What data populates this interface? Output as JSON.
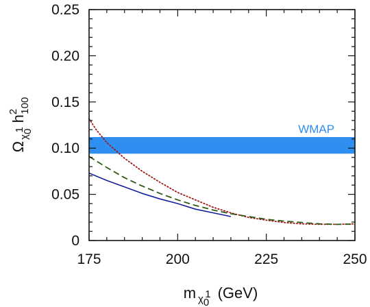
{
  "chart_data": {
    "type": "line",
    "title": "",
    "xlabel": {
      "main": "m",
      "sub_char": "χ",
      "sub_sub": "0",
      "sub_sup": "1",
      "unit": "(GeV)"
    },
    "ylabel": {
      "main": "Ω",
      "sub_char": "χ",
      "sub_sub": "0",
      "sub_sup": "1",
      "h": "h",
      "h_sup": "2",
      "h_sub": "100"
    },
    "xlim": [
      175,
      250
    ],
    "ylim": [
      0,
      0.25
    ],
    "x_ticks": [
      175,
      200,
      225,
      250
    ],
    "x_tick_labels": [
      "175",
      "200",
      "225",
      "250"
    ],
    "y_ticks": [
      0,
      0.05,
      0.1,
      0.15,
      0.2,
      0.25
    ],
    "y_tick_labels": [
      "0",
      "0.05",
      "0.10",
      "0.15",
      "0.20",
      "0.25"
    ],
    "grid": false,
    "legend": "none",
    "band": {
      "label": "WMAP",
      "ymin": 0.094,
      "ymax": 0.112,
      "color": "#2f8ff0"
    },
    "series": [
      {
        "style": "dotted",
        "color": "#a01818",
        "x": [
          175,
          177,
          180,
          185,
          190,
          195,
          200,
          205,
          210,
          215,
          220,
          225,
          230,
          235,
          240,
          245,
          250
        ],
        "y": [
          0.132,
          0.12,
          0.106,
          0.089,
          0.075,
          0.063,
          0.052,
          0.044,
          0.036,
          0.03,
          0.025,
          0.022,
          0.0195,
          0.018,
          0.0175,
          0.0175,
          0.018
        ]
      },
      {
        "style": "dashed",
        "color": "#2e5a14",
        "x": [
          175,
          180,
          185,
          190,
          195,
          200,
          205,
          210,
          215,
          220,
          225,
          230,
          235,
          240,
          245,
          250
        ],
        "y": [
          0.091,
          0.079,
          0.068,
          0.059,
          0.051,
          0.044,
          0.038,
          0.033,
          0.029,
          0.026,
          0.023,
          0.021,
          0.0195,
          0.018,
          0.0175,
          0.0177
        ]
      },
      {
        "style": "solid",
        "color": "#141e99",
        "x": [
          175,
          180,
          185,
          190,
          195,
          200,
          205,
          210,
          215
        ],
        "y": [
          0.073,
          0.065,
          0.058,
          0.051,
          0.045,
          0.04,
          0.034,
          0.03,
          0.026
        ]
      }
    ]
  }
}
